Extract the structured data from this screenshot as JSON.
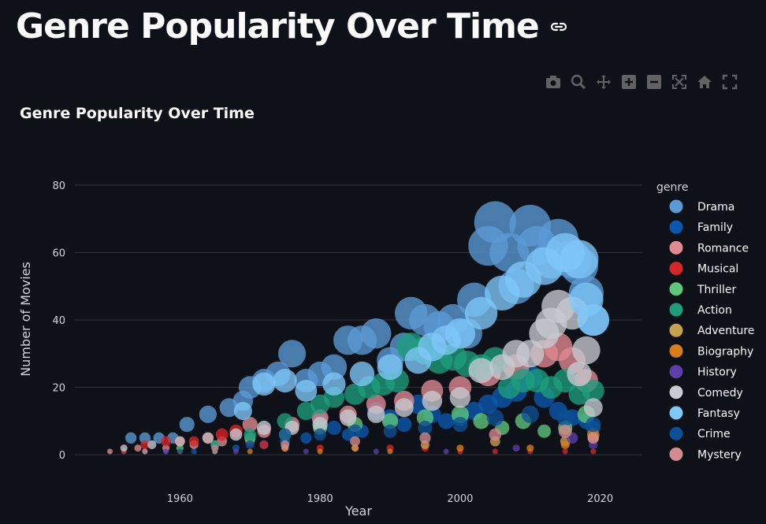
{
  "page": {
    "title": "Genre Popularity Over Time"
  },
  "toolbar": {
    "icons": [
      "camera-icon",
      "zoom-icon",
      "pan-icon",
      "zoom-in-icon",
      "zoom-out-icon",
      "autoscale-icon",
      "home-icon",
      "fullscreen-icon"
    ]
  },
  "chart_data": {
    "type": "scatter",
    "title": "Genre Popularity Over Time",
    "xlabel": "Year",
    "ylabel": "Number of Movies",
    "xlim": [
      1945,
      2026
    ],
    "ylim": [
      -3,
      87
    ],
    "xticks": [
      1960,
      1980,
      2000,
      2020
    ],
    "yticks": [
      0,
      20,
      40,
      60,
      80
    ],
    "grid": true,
    "legend_title": "genre",
    "legend_position": "right",
    "series": [
      {
        "name": "Drama",
        "color": "#5b9bd5",
        "points": [
          [
            1953,
            5
          ],
          [
            1955,
            5
          ],
          [
            1957,
            5
          ],
          [
            1959,
            5
          ],
          [
            1961,
            9
          ],
          [
            1964,
            12
          ],
          [
            1967,
            14
          ],
          [
            1969,
            16
          ],
          [
            1970,
            20
          ],
          [
            1972,
            22
          ],
          [
            1974,
            24
          ],
          [
            1976,
            30
          ],
          [
            1978,
            22
          ],
          [
            1980,
            24
          ],
          [
            1982,
            26
          ],
          [
            1984,
            34
          ],
          [
            1986,
            34
          ],
          [
            1988,
            36
          ],
          [
            1990,
            28
          ],
          [
            1992,
            32
          ],
          [
            1993,
            42
          ],
          [
            1995,
            40
          ],
          [
            1997,
            38
          ],
          [
            1999,
            40
          ],
          [
            2001,
            36
          ],
          [
            2002,
            46
          ],
          [
            2004,
            62
          ],
          [
            2005,
            69
          ],
          [
            2007,
            60
          ],
          [
            2008,
            50
          ],
          [
            2010,
            68
          ],
          [
            2011,
            62
          ],
          [
            2013,
            58
          ],
          [
            2014,
            64
          ],
          [
            2016,
            58
          ],
          [
            2017,
            56
          ],
          [
            2018,
            48
          ],
          [
            2019,
            40
          ]
        ]
      },
      {
        "name": "Family",
        "color": "#0b58b0",
        "points": [
          [
            1952,
            1
          ],
          [
            1955,
            1
          ],
          [
            1958,
            1
          ],
          [
            1962,
            1
          ],
          [
            1965,
            1
          ],
          [
            1968,
            2
          ],
          [
            1972,
            3
          ],
          [
            1975,
            4
          ],
          [
            1978,
            5
          ],
          [
            1980,
            10
          ],
          [
            1982,
            8
          ],
          [
            1984,
            6
          ],
          [
            1986,
            7
          ],
          [
            1988,
            13
          ],
          [
            1990,
            11
          ],
          [
            1992,
            9
          ],
          [
            1994,
            15
          ],
          [
            1996,
            12
          ],
          [
            1998,
            10
          ],
          [
            2000,
            11
          ],
          [
            2002,
            13
          ],
          [
            2004,
            15
          ],
          [
            2006,
            17
          ],
          [
            2008,
            19
          ],
          [
            2010,
            23
          ],
          [
            2012,
            17
          ],
          [
            2014,
            13
          ],
          [
            2016,
            11
          ],
          [
            2018,
            10
          ],
          [
            2019,
            8
          ]
        ]
      },
      {
        "name": "Romance",
        "color": "#e08b92",
        "points": [
          [
            1950,
            1
          ],
          [
            1954,
            2
          ],
          [
            1958,
            2
          ],
          [
            1962,
            3
          ],
          [
            1966,
            4
          ],
          [
            1970,
            9
          ],
          [
            1972,
            7
          ],
          [
            1976,
            9
          ],
          [
            1980,
            11
          ],
          [
            1984,
            12
          ],
          [
            1988,
            15
          ],
          [
            1992,
            16
          ],
          [
            1996,
            19
          ],
          [
            2000,
            20
          ],
          [
            2004,
            24
          ],
          [
            2008,
            26
          ],
          [
            2012,
            30
          ],
          [
            2014,
            32
          ],
          [
            2016,
            28
          ],
          [
            2018,
            22
          ]
        ]
      },
      {
        "name": "Musical",
        "color": "#d62728",
        "points": [
          [
            1952,
            1
          ],
          [
            1955,
            3
          ],
          [
            1958,
            4
          ],
          [
            1960,
            4
          ],
          [
            1962,
            4
          ],
          [
            1964,
            5
          ],
          [
            1966,
            6
          ],
          [
            1968,
            7
          ],
          [
            1970,
            4
          ],
          [
            1972,
            3
          ],
          [
            1975,
            2
          ],
          [
            1980,
            2
          ],
          [
            1985,
            2
          ],
          [
            1990,
            2
          ],
          [
            1995,
            2
          ],
          [
            2000,
            1
          ],
          [
            2005,
            1
          ],
          [
            2010,
            1
          ],
          [
            2015,
            1
          ],
          [
            2019,
            1
          ]
        ]
      },
      {
        "name": "Thriller",
        "color": "#5fc67e",
        "points": [
          [
            1955,
            1
          ],
          [
            1960,
            2
          ],
          [
            1965,
            3
          ],
          [
            1970,
            5
          ],
          [
            1975,
            6
          ],
          [
            1980,
            8
          ],
          [
            1985,
            9
          ],
          [
            1990,
            10
          ],
          [
            1995,
            11
          ],
          [
            2000,
            12
          ],
          [
            2003,
            10
          ],
          [
            2006,
            8
          ],
          [
            2009,
            10
          ],
          [
            2012,
            7
          ],
          [
            2015,
            8
          ],
          [
            2018,
            12
          ]
        ]
      },
      {
        "name": "Action",
        "color": "#1e9d7d",
        "points": [
          [
            1965,
            3
          ],
          [
            1970,
            6
          ],
          [
            1975,
            10
          ],
          [
            1978,
            13
          ],
          [
            1980,
            15
          ],
          [
            1982,
            17
          ],
          [
            1985,
            18
          ],
          [
            1987,
            20
          ],
          [
            1989,
            21
          ],
          [
            1991,
            22
          ],
          [
            1993,
            32
          ],
          [
            1995,
            31
          ],
          [
            1997,
            28
          ],
          [
            1999,
            29
          ],
          [
            2001,
            27
          ],
          [
            2003,
            26
          ],
          [
            2005,
            28
          ],
          [
            2007,
            20
          ],
          [
            2009,
            22
          ],
          [
            2011,
            22
          ],
          [
            2013,
            20
          ],
          [
            2015,
            22
          ],
          [
            2017,
            18
          ],
          [
            2019,
            19
          ]
        ]
      },
      {
        "name": "Adventure",
        "color": "#c9a04e",
        "points": [
          [
            1955,
            1
          ],
          [
            1965,
            1
          ],
          [
            1975,
            2
          ],
          [
            1985,
            2
          ],
          [
            1995,
            3
          ],
          [
            2005,
            4
          ],
          [
            2015,
            4
          ],
          [
            2019,
            5
          ]
        ]
      },
      {
        "name": "Biography",
        "color": "#d97c1a",
        "points": [
          [
            1960,
            1
          ],
          [
            1970,
            1
          ],
          [
            1980,
            1
          ],
          [
            1990,
            1
          ],
          [
            2000,
            2
          ],
          [
            2010,
            2
          ],
          [
            2015,
            3
          ],
          [
            2019,
            6
          ]
        ]
      },
      {
        "name": "History",
        "color": "#5c3fa8",
        "points": [
          [
            1958,
            1
          ],
          [
            1968,
            1
          ],
          [
            1978,
            1
          ],
          [
            1988,
            1
          ],
          [
            1998,
            1
          ],
          [
            2008,
            2
          ],
          [
            2016,
            5
          ],
          [
            2019,
            3
          ]
        ]
      },
      {
        "name": "Comedy",
        "color": "#c8cbd1",
        "points": [
          [
            1952,
            2
          ],
          [
            1956,
            3
          ],
          [
            1960,
            4
          ],
          [
            1964,
            5
          ],
          [
            1968,
            6
          ],
          [
            1972,
            8
          ],
          [
            1976,
            8
          ],
          [
            1980,
            9
          ],
          [
            1984,
            11
          ],
          [
            1988,
            12
          ],
          [
            1992,
            14
          ],
          [
            1996,
            16
          ],
          [
            2000,
            17
          ],
          [
            2003,
            25
          ],
          [
            2006,
            26
          ],
          [
            2008,
            30
          ],
          [
            2010,
            30
          ],
          [
            2012,
            36
          ],
          [
            2013,
            39
          ],
          [
            2014,
            44
          ],
          [
            2016,
            42
          ],
          [
            2017,
            24
          ],
          [
            2018,
            31
          ],
          [
            2019,
            14
          ]
        ]
      },
      {
        "name": "Fantasy",
        "color": "#7fc8f8",
        "points": [
          [
            1969,
            13
          ],
          [
            1972,
            21
          ],
          [
            1975,
            22
          ],
          [
            1978,
            19
          ],
          [
            1982,
            21
          ],
          [
            1986,
            24
          ],
          [
            1990,
            26
          ],
          [
            1994,
            28
          ],
          [
            1996,
            32
          ],
          [
            1998,
            34
          ],
          [
            2000,
            36
          ],
          [
            2003,
            42
          ],
          [
            2006,
            48
          ],
          [
            2009,
            52
          ],
          [
            2012,
            56
          ],
          [
            2015,
            60
          ],
          [
            2017,
            58
          ],
          [
            2018,
            46
          ],
          [
            2019,
            40
          ]
        ]
      },
      {
        "name": "Crime",
        "color": "#0d4f94",
        "points": [
          [
            1955,
            1
          ],
          [
            1960,
            1
          ],
          [
            1965,
            2
          ],
          [
            1970,
            3
          ],
          [
            1975,
            6
          ],
          [
            1980,
            6
          ],
          [
            1985,
            7
          ],
          [
            1990,
            7
          ],
          [
            1995,
            8
          ],
          [
            2000,
            9
          ],
          [
            2005,
            11
          ],
          [
            2010,
            12
          ],
          [
            2015,
            11
          ],
          [
            2019,
            9
          ]
        ]
      },
      {
        "name": "Mystery",
        "color": "#d28b91",
        "points": [
          [
            1955,
            1
          ],
          [
            1965,
            2
          ],
          [
            1975,
            3
          ],
          [
            1985,
            4
          ],
          [
            1995,
            5
          ],
          [
            2005,
            6
          ],
          [
            2015,
            7
          ],
          [
            2019,
            5
          ]
        ]
      }
    ]
  }
}
